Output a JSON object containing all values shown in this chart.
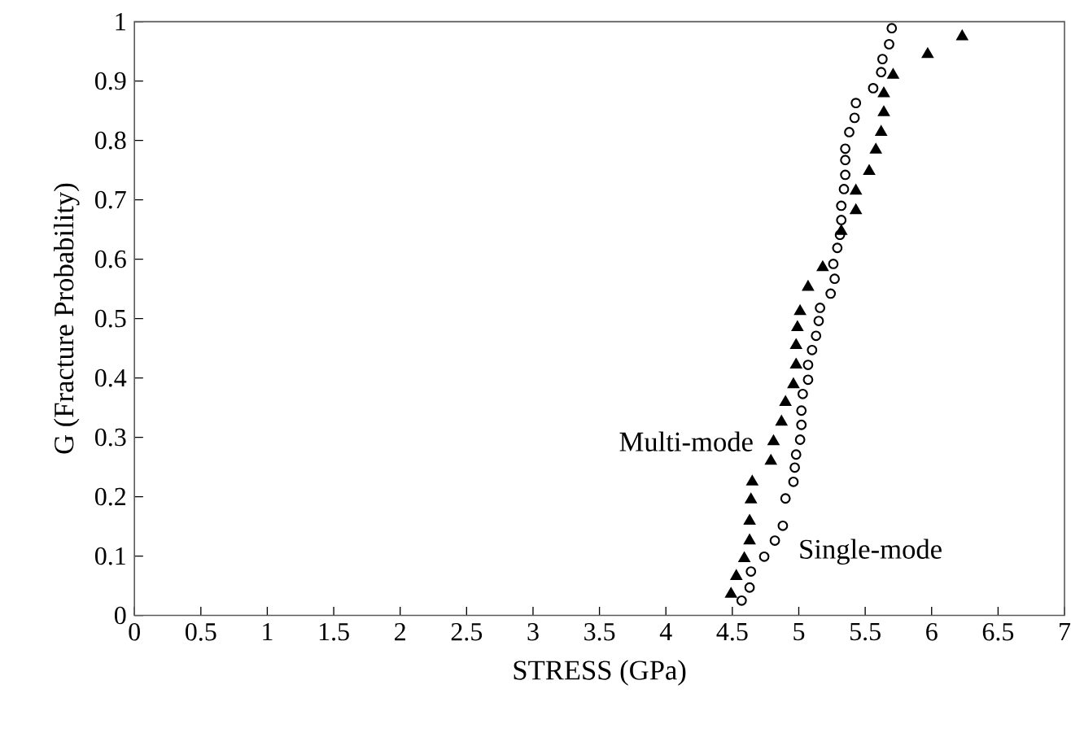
{
  "chart_data": {
    "type": "scatter",
    "xlabel": "STRESS (GPa)",
    "ylabel": "G (Fracture Probability)",
    "xlim": [
      0,
      7
    ],
    "ylim": [
      0,
      1
    ],
    "xticks": [
      0,
      0.5,
      1,
      1.5,
      2,
      2.5,
      3,
      3.5,
      4,
      4.5,
      5,
      5.5,
      6,
      6.5,
      7
    ],
    "yticks": [
      0,
      0.1,
      0.2,
      0.3,
      0.4,
      0.5,
      0.6,
      0.7,
      0.8,
      0.9,
      1
    ],
    "grid": false,
    "legend": false,
    "series": [
      {
        "name": "Multi-mode",
        "color": "#000000",
        "marker": "triangle",
        "x": [
          4.49,
          4.53,
          4.59,
          4.63,
          4.63,
          4.64,
          4.65,
          4.79,
          4.81,
          4.87,
          4.9,
          4.96,
          4.98,
          4.98,
          4.99,
          5.01,
          5.07,
          5.18,
          5.32,
          5.43,
          5.43,
          5.53,
          5.58,
          5.62,
          5.64,
          5.64,
          5.71,
          5.97,
          6.23
        ],
        "values": [
          0.036,
          0.066,
          0.096,
          0.126,
          0.159,
          0.195,
          0.225,
          0.26,
          0.293,
          0.326,
          0.359,
          0.389,
          0.422,
          0.455,
          0.485,
          0.512,
          0.553,
          0.586,
          0.647,
          0.682,
          0.715,
          0.748,
          0.784,
          0.814,
          0.847,
          0.879,
          0.91,
          0.945,
          0.975
        ]
      },
      {
        "name": "Single-mode",
        "color": "#000000",
        "marker": "circle",
        "x": [
          4.57,
          4.63,
          4.64,
          4.74,
          4.82,
          4.88,
          4.9,
          4.96,
          4.97,
          4.98,
          5.01,
          5.02,
          5.02,
          5.03,
          5.07,
          5.07,
          5.1,
          5.13,
          5.15,
          5.16,
          5.24,
          5.27,
          5.26,
          5.29,
          5.31,
          5.32,
          5.32,
          5.34,
          5.35,
          5.35,
          5.35,
          5.38,
          5.42,
          5.43,
          5.56,
          5.62,
          5.63,
          5.68,
          5.7
        ],
        "values": [
          0.025,
          0.047,
          0.074,
          0.099,
          0.126,
          0.151,
          0.197,
          0.225,
          0.249,
          0.271,
          0.296,
          0.321,
          0.345,
          0.373,
          0.397,
          0.422,
          0.447,
          0.471,
          0.496,
          0.518,
          0.542,
          0.567,
          0.592,
          0.619,
          0.641,
          0.666,
          0.69,
          0.718,
          0.742,
          0.767,
          0.786,
          0.814,
          0.838,
          0.863,
          0.888,
          0.915,
          0.937,
          0.962,
          0.989
        ]
      }
    ]
  }
}
